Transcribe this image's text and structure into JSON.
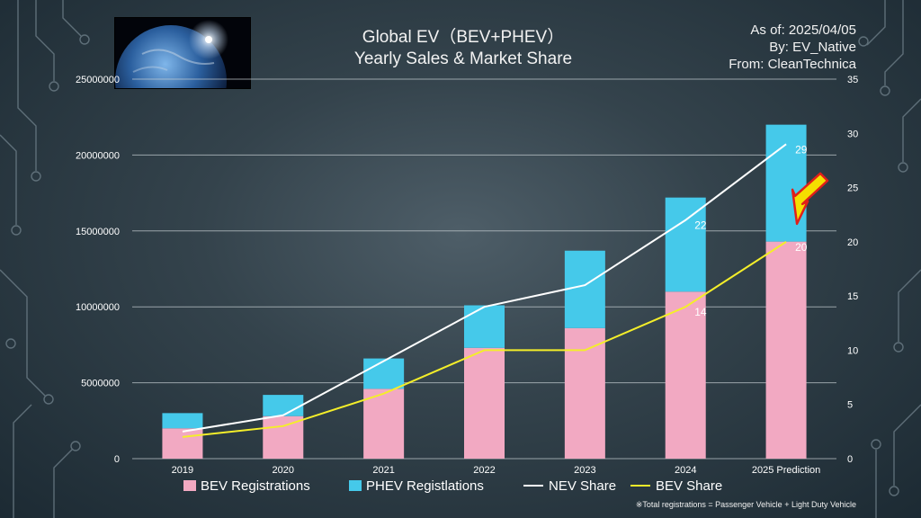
{
  "title_line1": "Global EV（BEV+PHEV）",
  "title_line2": "Yearly Sales & Market Share",
  "as_of": "As of: 2025/04/05",
  "by": "By: EV_Native",
  "source": "From: CleanTechnica",
  "footnote": "※Total registrations = Passenger Vehicle + Light Duty Vehicle",
  "colors": {
    "bev": "#f2a9c2",
    "phev": "#45c9ea",
    "nev_line": "#ffffff",
    "bev_line": "#f4ee2a",
    "arrow_fill": "#f5e000",
    "arrow_stroke": "#e0201a"
  },
  "chart_data": {
    "type": "bar",
    "categories": [
      "2019",
      "2020",
      "2021",
      "2022",
      "2023",
      "2024",
      "2025 Prediction"
    ],
    "series": [
      {
        "name": "BEV Registrations",
        "values": [
          2000000,
          2800000,
          4600000,
          7300000,
          8600000,
          11000000,
          14300000
        ],
        "stack": "total"
      },
      {
        "name": "PHEV Registlations",
        "values": [
          1000000,
          1400000,
          2000000,
          2800000,
          5100000,
          6200000,
          7700000
        ],
        "stack": "total"
      },
      {
        "name": "NEV Share",
        "type": "line",
        "axis": "right",
        "values": [
          2.5,
          4,
          9,
          14,
          16,
          22,
          29
        ]
      },
      {
        "name": "BEV Share",
        "type": "line",
        "axis": "right",
        "values": [
          2,
          3,
          6,
          10,
          10,
          14,
          20
        ]
      }
    ],
    "data_labels": [
      {
        "series": "NEV Share",
        "category": "2024",
        "text": "22"
      },
      {
        "series": "NEV Share",
        "category": "2025 Prediction",
        "text": "29"
      },
      {
        "series": "BEV Share",
        "category": "2024",
        "text": "14"
      },
      {
        "series": "BEV Share",
        "category": "2025 Prediction",
        "text": "20"
      }
    ],
    "y_left": {
      "min": 0,
      "max": 25000000,
      "ticks": [
        0,
        5000000,
        10000000,
        15000000,
        20000000,
        25000000
      ]
    },
    "y_right": {
      "min": 0,
      "max": 35,
      "ticks": [
        0,
        5,
        10,
        15,
        20,
        25,
        30,
        35
      ]
    },
    "grid": true,
    "legend_position": "bottom"
  }
}
